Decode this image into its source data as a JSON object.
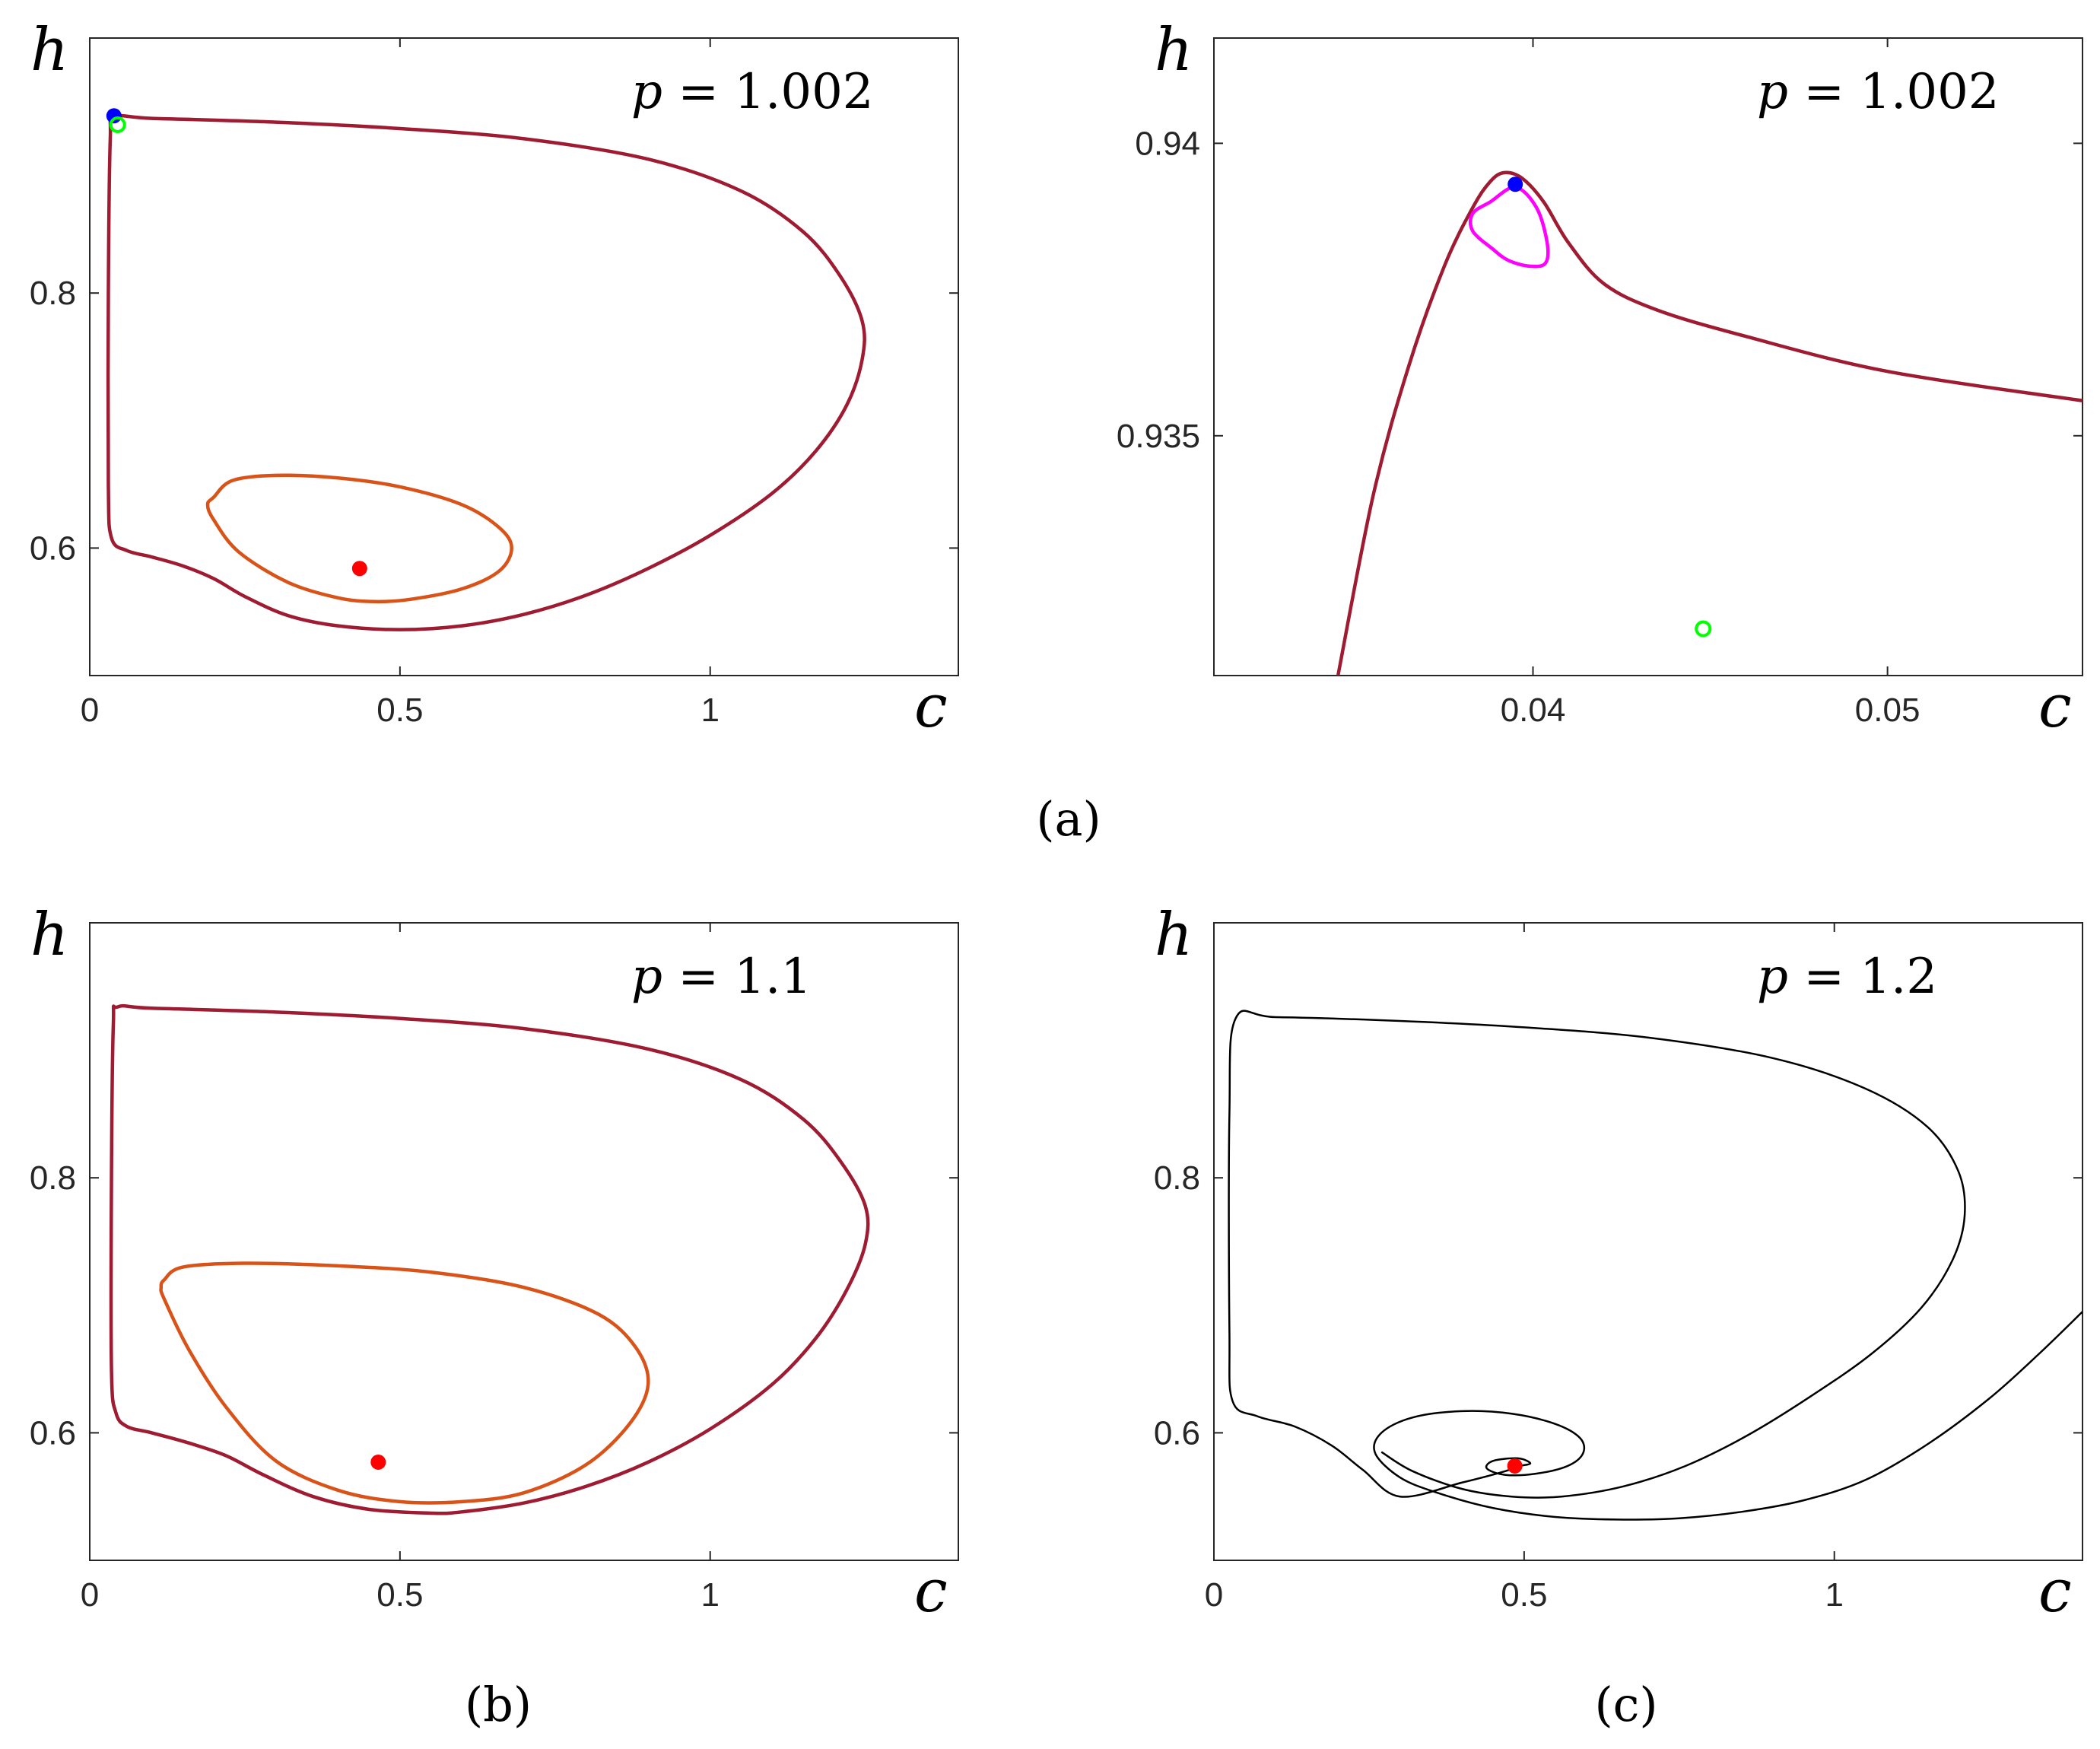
{
  "colors": {
    "dark_red": "#9e1b32",
    "orange": "#d95319",
    "magenta": "#ff00ff",
    "black": "#000000",
    "blue": "#0000ff",
    "red": "#ff0000",
    "green": "#00ff00"
  },
  "captions": [
    "(a)",
    "(b)",
    "(c)"
  ],
  "chart_data": [
    {
      "id": "a-left",
      "type": "line",
      "xlabel": "c",
      "ylabel": "h",
      "xlim": [
        0,
        1.4
      ],
      "ylim": [
        0.5,
        1.0
      ],
      "xticks": [
        0,
        0.5,
        1
      ],
      "xtick_labels": [
        "0",
        "0.5",
        "1"
      ],
      "yticks": [
        0.6,
        0.8
      ],
      "ytick_labels": [
        "0.6",
        "0.8"
      ],
      "annotation": {
        "lhs": "p",
        "rhs": "1.002"
      },
      "series": [
        {
          "color": "dark_red",
          "closed": true,
          "points": [
            [
              0.04,
              0.938
            ],
            [
              0.1,
              0.937
            ],
            [
              0.3,
              0.934
            ],
            [
              0.5,
              0.929
            ],
            [
              0.7,
              0.921
            ],
            [
              0.9,
              0.905
            ],
            [
              1.05,
              0.88
            ],
            [
              1.15,
              0.848
            ],
            [
              1.21,
              0.813
            ],
            [
              1.245,
              0.778
            ],
            [
              1.245,
              0.748
            ],
            [
              1.22,
              0.712
            ],
            [
              1.17,
              0.676
            ],
            [
              1.1,
              0.643
            ],
            [
              1.0,
              0.61
            ],
            [
              0.9,
              0.584
            ],
            [
              0.8,
              0.563
            ],
            [
              0.7,
              0.548
            ],
            [
              0.6,
              0.539
            ],
            [
              0.5,
              0.536
            ],
            [
              0.4,
              0.539
            ],
            [
              0.32,
              0.547
            ],
            [
              0.25,
              0.562
            ],
            [
              0.2,
              0.576
            ],
            [
              0.15,
              0.586
            ],
            [
              0.1,
              0.593
            ],
            [
              0.06,
              0.598
            ],
            [
              0.035,
              0.608
            ],
            [
              0.03,
              0.65
            ],
            [
              0.03,
              0.8
            ],
            [
              0.033,
              0.92
            ]
          ]
        },
        {
          "color": "orange",
          "closed": true,
          "points": [
            [
              0.2,
              0.64
            ],
            [
              0.23,
              0.653
            ],
            [
              0.3,
              0.657
            ],
            [
              0.4,
              0.655
            ],
            [
              0.5,
              0.648
            ],
            [
              0.6,
              0.634
            ],
            [
              0.66,
              0.616
            ],
            [
              0.68,
              0.6
            ],
            [
              0.66,
              0.582
            ],
            [
              0.6,
              0.568
            ],
            [
              0.52,
              0.56
            ],
            [
              0.46,
              0.558
            ],
            [
              0.4,
              0.561
            ],
            [
              0.32,
              0.573
            ],
            [
              0.24,
              0.597
            ],
            [
              0.2,
              0.622
            ],
            [
              0.19,
              0.634
            ]
          ]
        }
      ],
      "markers": [
        {
          "x": 0.039,
          "y": 0.939,
          "style": "filled",
          "color": "blue"
        },
        {
          "x": 0.045,
          "y": 0.932,
          "style": "open",
          "color": "green"
        },
        {
          "x": 0.435,
          "y": 0.584,
          "style": "filled",
          "color": "red"
        }
      ]
    },
    {
      "id": "a-right",
      "type": "line",
      "xlabel": "c",
      "ylabel": "h",
      "xlim": [
        0.031,
        0.0555
      ],
      "ylim": [
        0.9309,
        0.9418
      ],
      "xticks": [
        0.04,
        0.05
      ],
      "xtick_labels": [
        "0.04",
        "0.05"
      ],
      "yticks": [
        0.935,
        0.94
      ],
      "ytick_labels": [
        "0.935",
        "0.94"
      ],
      "annotation": {
        "lhs": "p",
        "rhs": "1.002"
      },
      "series": [
        {
          "color": "dark_red",
          "closed": false,
          "points": [
            [
              0.0345,
              0.9309
            ],
            [
              0.0355,
              0.934
            ],
            [
              0.0365,
              0.9362
            ],
            [
              0.0375,
              0.9379
            ],
            [
              0.0383,
              0.9389
            ],
            [
              0.0388,
              0.93935
            ],
            [
              0.0392,
              0.9395
            ],
            [
              0.0397,
              0.9394
            ],
            [
              0.0403,
              0.939
            ],
            [
              0.041,
              0.9383
            ],
            [
              0.042,
              0.9376
            ],
            [
              0.0435,
              0.93715
            ],
            [
              0.046,
              0.9367
            ],
            [
              0.05,
              0.9361
            ],
            [
              0.0555,
              0.9356
            ]
          ]
        },
        {
          "color": "magenta",
          "closed": true,
          "points": [
            [
              0.0388,
              0.939
            ],
            [
              0.0395,
              0.93925
            ],
            [
              0.0401,
              0.9389
            ],
            [
              0.0404,
              0.9383
            ],
            [
              0.04035,
              0.93795
            ],
            [
              0.0399,
              0.9379
            ],
            [
              0.0393,
              0.938
            ],
            [
              0.03885,
              0.9382
            ],
            [
              0.0383,
              0.9385
            ],
            [
              0.0383,
              0.9388
            ]
          ]
        }
      ],
      "markers": [
        {
          "x": 0.0395,
          "y": 0.9393,
          "style": "filled",
          "color": "blue"
        },
        {
          "x": 0.0448,
          "y": 0.9317,
          "style": "open",
          "color": "green"
        }
      ]
    },
    {
      "id": "b",
      "type": "line",
      "xlabel": "c",
      "ylabel": "h",
      "xlim": [
        0,
        1.4
      ],
      "ylim": [
        0.5,
        1.0
      ],
      "xticks": [
        0,
        0.5,
        1
      ],
      "xtick_labels": [
        "0",
        "0.5",
        "1"
      ],
      "yticks": [
        0.6,
        0.8
      ],
      "ytick_labels": [
        "0.6",
        "0.8"
      ],
      "annotation": {
        "lhs": "p",
        "rhs": "1.1"
      },
      "series": [
        {
          "color": "dark_red",
          "closed": true,
          "points": [
            [
              0.045,
              0.934
            ],
            [
              0.1,
              0.933
            ],
            [
              0.3,
              0.93
            ],
            [
              0.5,
              0.925
            ],
            [
              0.7,
              0.917
            ],
            [
              0.9,
              0.901
            ],
            [
              1.05,
              0.877
            ],
            [
              1.15,
              0.846
            ],
            [
              1.21,
              0.813
            ],
            [
              1.25,
              0.778
            ],
            [
              1.25,
              0.748
            ],
            [
              1.22,
              0.712
            ],
            [
              1.17,
              0.674
            ],
            [
              1.1,
              0.638
            ],
            [
              1.0,
              0.603
            ],
            [
              0.9,
              0.577
            ],
            [
              0.8,
              0.558
            ],
            [
              0.7,
              0.545
            ],
            [
              0.6,
              0.538
            ],
            [
              0.55,
              0.537
            ],
            [
              0.45,
              0.54
            ],
            [
              0.36,
              0.55
            ],
            [
              0.28,
              0.567
            ],
            [
              0.22,
              0.582
            ],
            [
              0.16,
              0.592
            ],
            [
              0.1,
              0.6
            ],
            [
              0.06,
              0.605
            ],
            [
              0.042,
              0.616
            ],
            [
              0.035,
              0.65
            ],
            [
              0.035,
              0.8
            ],
            [
              0.038,
              0.92
            ]
          ]
        },
        {
          "color": "orange",
          "closed": true,
          "points": [
            [
              0.12,
              0.72
            ],
            [
              0.15,
              0.73
            ],
            [
              0.25,
              0.733
            ],
            [
              0.4,
              0.731
            ],
            [
              0.55,
              0.726
            ],
            [
              0.7,
              0.714
            ],
            [
              0.82,
              0.693
            ],
            [
              0.88,
              0.667
            ],
            [
              0.9,
              0.638
            ],
            [
              0.87,
              0.607
            ],
            [
              0.8,
              0.575
            ],
            [
              0.7,
              0.553
            ],
            [
              0.6,
              0.546
            ],
            [
              0.5,
              0.546
            ],
            [
              0.4,
              0.555
            ],
            [
              0.3,
              0.578
            ],
            [
              0.22,
              0.62
            ],
            [
              0.16,
              0.665
            ],
            [
              0.12,
              0.705
            ],
            [
              0.115,
              0.714
            ]
          ]
        }
      ],
      "markers": [
        {
          "x": 0.465,
          "y": 0.577,
          "style": "filled",
          "color": "red"
        }
      ]
    },
    {
      "id": "c",
      "type": "line",
      "xlabel": "c",
      "ylabel": "h",
      "xlim": [
        0,
        1.4
      ],
      "ylim": [
        0.5,
        1.0
      ],
      "xticks": [
        0,
        0.5,
        1
      ],
      "xtick_labels": [
        "0",
        "0.5",
        "1"
      ],
      "yticks": [
        0.6,
        0.8
      ],
      "ytick_labels": [
        "0.6",
        "0.8"
      ],
      "annotation": {
        "lhs": "p",
        "rhs": "1.2"
      },
      "series": [
        {
          "color": "black",
          "closed": false,
          "points": [
            [
              1.4,
              0.695
            ],
            [
              1.33,
              0.662
            ],
            [
              1.25,
              0.627
            ],
            [
              1.15,
              0.591
            ],
            [
              1.05,
              0.563
            ],
            [
              0.95,
              0.547
            ],
            [
              0.85,
              0.538
            ],
            [
              0.75,
              0.533
            ],
            [
              0.65,
              0.532
            ],
            [
              0.55,
              0.534
            ],
            [
              0.45,
              0.541
            ],
            [
              0.36,
              0.553
            ],
            [
              0.3,
              0.565
            ],
            [
              0.26,
              0.584
            ],
            [
              0.27,
              0.6
            ],
            [
              0.32,
              0.612
            ],
            [
              0.4,
              0.617
            ],
            [
              0.48,
              0.615
            ],
            [
              0.55,
              0.607
            ],
            [
              0.59,
              0.596
            ],
            [
              0.595,
              0.584
            ],
            [
              0.57,
              0.574
            ],
            [
              0.52,
              0.568
            ],
            [
              0.47,
              0.567
            ],
            [
              0.44,
              0.572
            ],
            [
              0.45,
              0.578
            ],
            [
              0.49,
              0.58
            ],
            [
              0.51,
              0.576
            ],
            [
              0.49,
              0.574
            ]
          ]
        },
        {
          "color": "black",
          "closed": false,
          "points": [
            [
              0.49,
              0.574
            ],
            [
              0.47,
              0.57
            ],
            [
              0.4,
              0.561
            ],
            [
              0.3,
              0.55
            ],
            [
              0.24,
              0.571
            ],
            [
              0.19,
              0.59
            ],
            [
              0.13,
              0.605
            ],
            [
              0.07,
              0.613
            ],
            [
              0.03,
              0.625
            ],
            [
              0.025,
              0.68
            ],
            [
              0.025,
              0.85
            ],
            [
              0.035,
              0.925
            ],
            [
              0.1,
              0.926
            ],
            [
              0.3,
              0.923
            ],
            [
              0.5,
              0.918
            ],
            [
              0.7,
              0.91
            ],
            [
              0.9,
              0.894
            ],
            [
              1.05,
              0.87
            ],
            [
              1.15,
              0.84
            ],
            [
              1.2,
              0.805
            ],
            [
              1.21,
              0.77
            ],
            [
              1.19,
              0.735
            ],
            [
              1.14,
              0.698
            ],
            [
              1.06,
              0.662
            ],
            [
              0.96,
              0.628
            ],
            [
              0.86,
              0.598
            ],
            [
              0.76,
              0.574
            ],
            [
              0.66,
              0.558
            ],
            [
              0.56,
              0.55
            ],
            [
              0.48,
              0.55
            ],
            [
              0.4,
              0.556
            ],
            [
              0.32,
              0.57
            ],
            [
              0.27,
              0.585
            ]
          ]
        }
      ],
      "markers": [
        {
          "x": 0.485,
          "y": 0.574,
          "style": "filled",
          "color": "red"
        }
      ]
    }
  ]
}
